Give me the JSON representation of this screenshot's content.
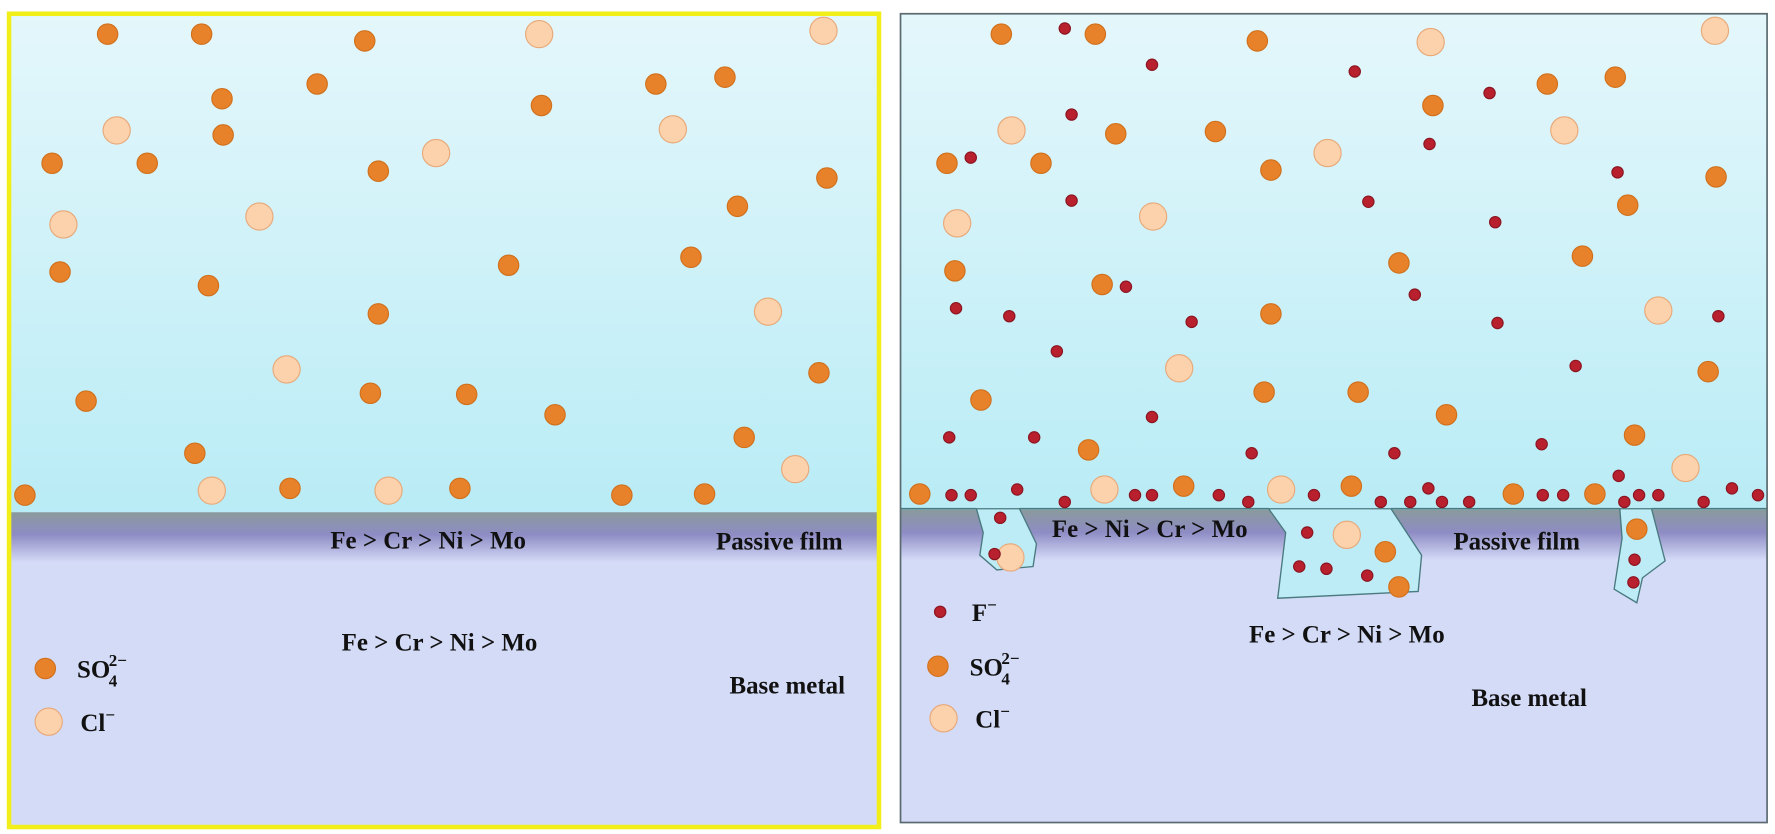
{
  "panels": [
    {
      "film_order": "Fe > Cr > Ni > Mo",
      "film_label": "Passive film",
      "base_order": "Fe > Cr > Ni > Mo",
      "base_label": "Base metal",
      "legend": [
        {
          "formula": "SO",
          "subscript": "4",
          "charge": "2−"
        },
        {
          "formula": "Cl",
          "charge": "−"
        }
      ]
    },
    {
      "film_order": "Fe > Ni > Cr > Mo",
      "film_label": "Passive film",
      "base_order": "Fe > Cr > Ni > Mo",
      "base_label": "Base metal",
      "legend": [
        {
          "formula": "F",
          "charge": "−"
        },
        {
          "formula": "SO",
          "subscript": "4",
          "charge": "2−"
        },
        {
          "formula": "Cl",
          "charge": "−"
        }
      ]
    }
  ]
}
